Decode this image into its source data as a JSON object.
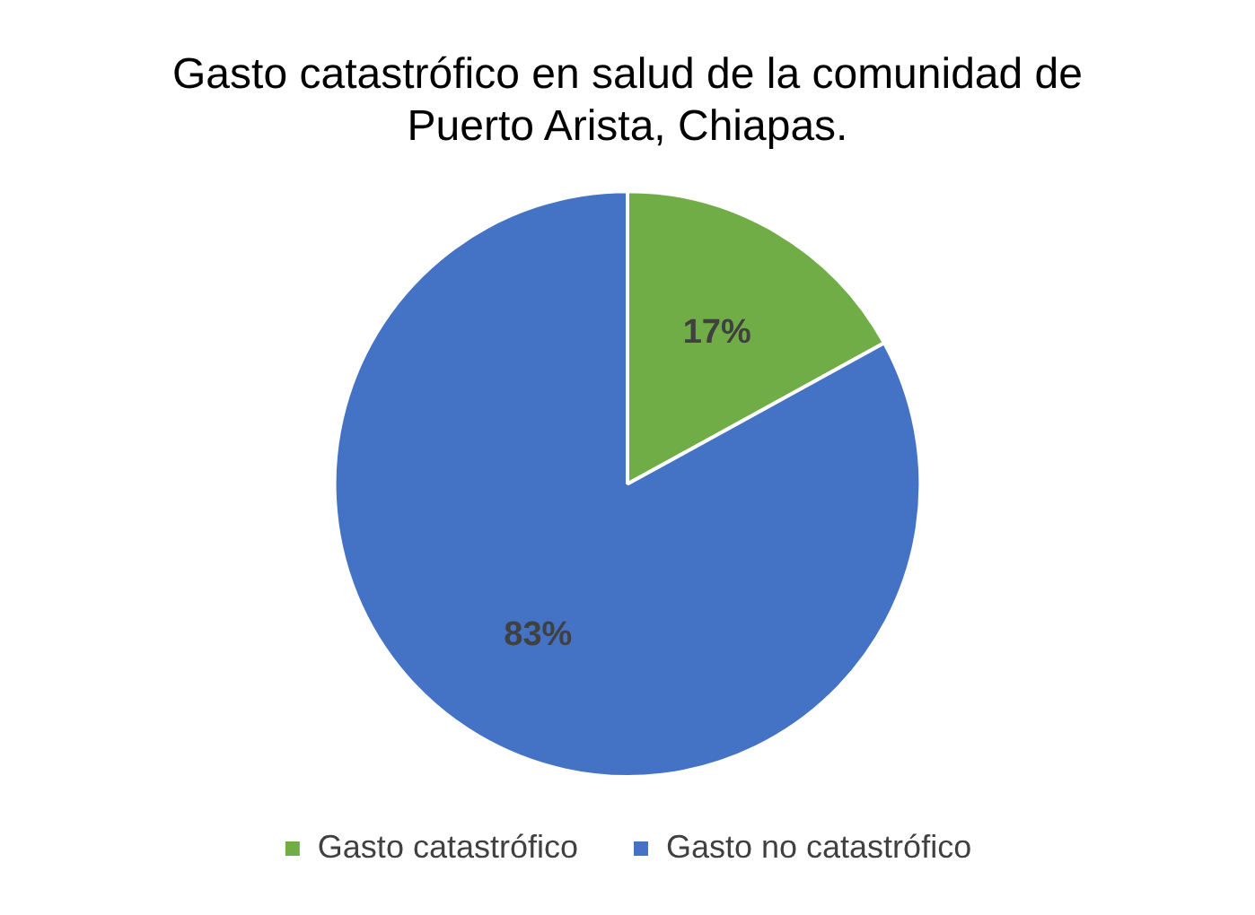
{
  "chart_data": {
    "type": "pie",
    "title": "Gasto catastrófico en salud de la comunidad de Puerto Arista, Chiapas.",
    "categories": [
      "Gasto catastrófico",
      "Gasto no catastrófico"
    ],
    "values": [
      17,
      83
    ],
    "colors": [
      "#70ad47",
      "#4472c4"
    ],
    "value_labels": [
      "17%",
      "83%"
    ],
    "legend": "bottom"
  }
}
